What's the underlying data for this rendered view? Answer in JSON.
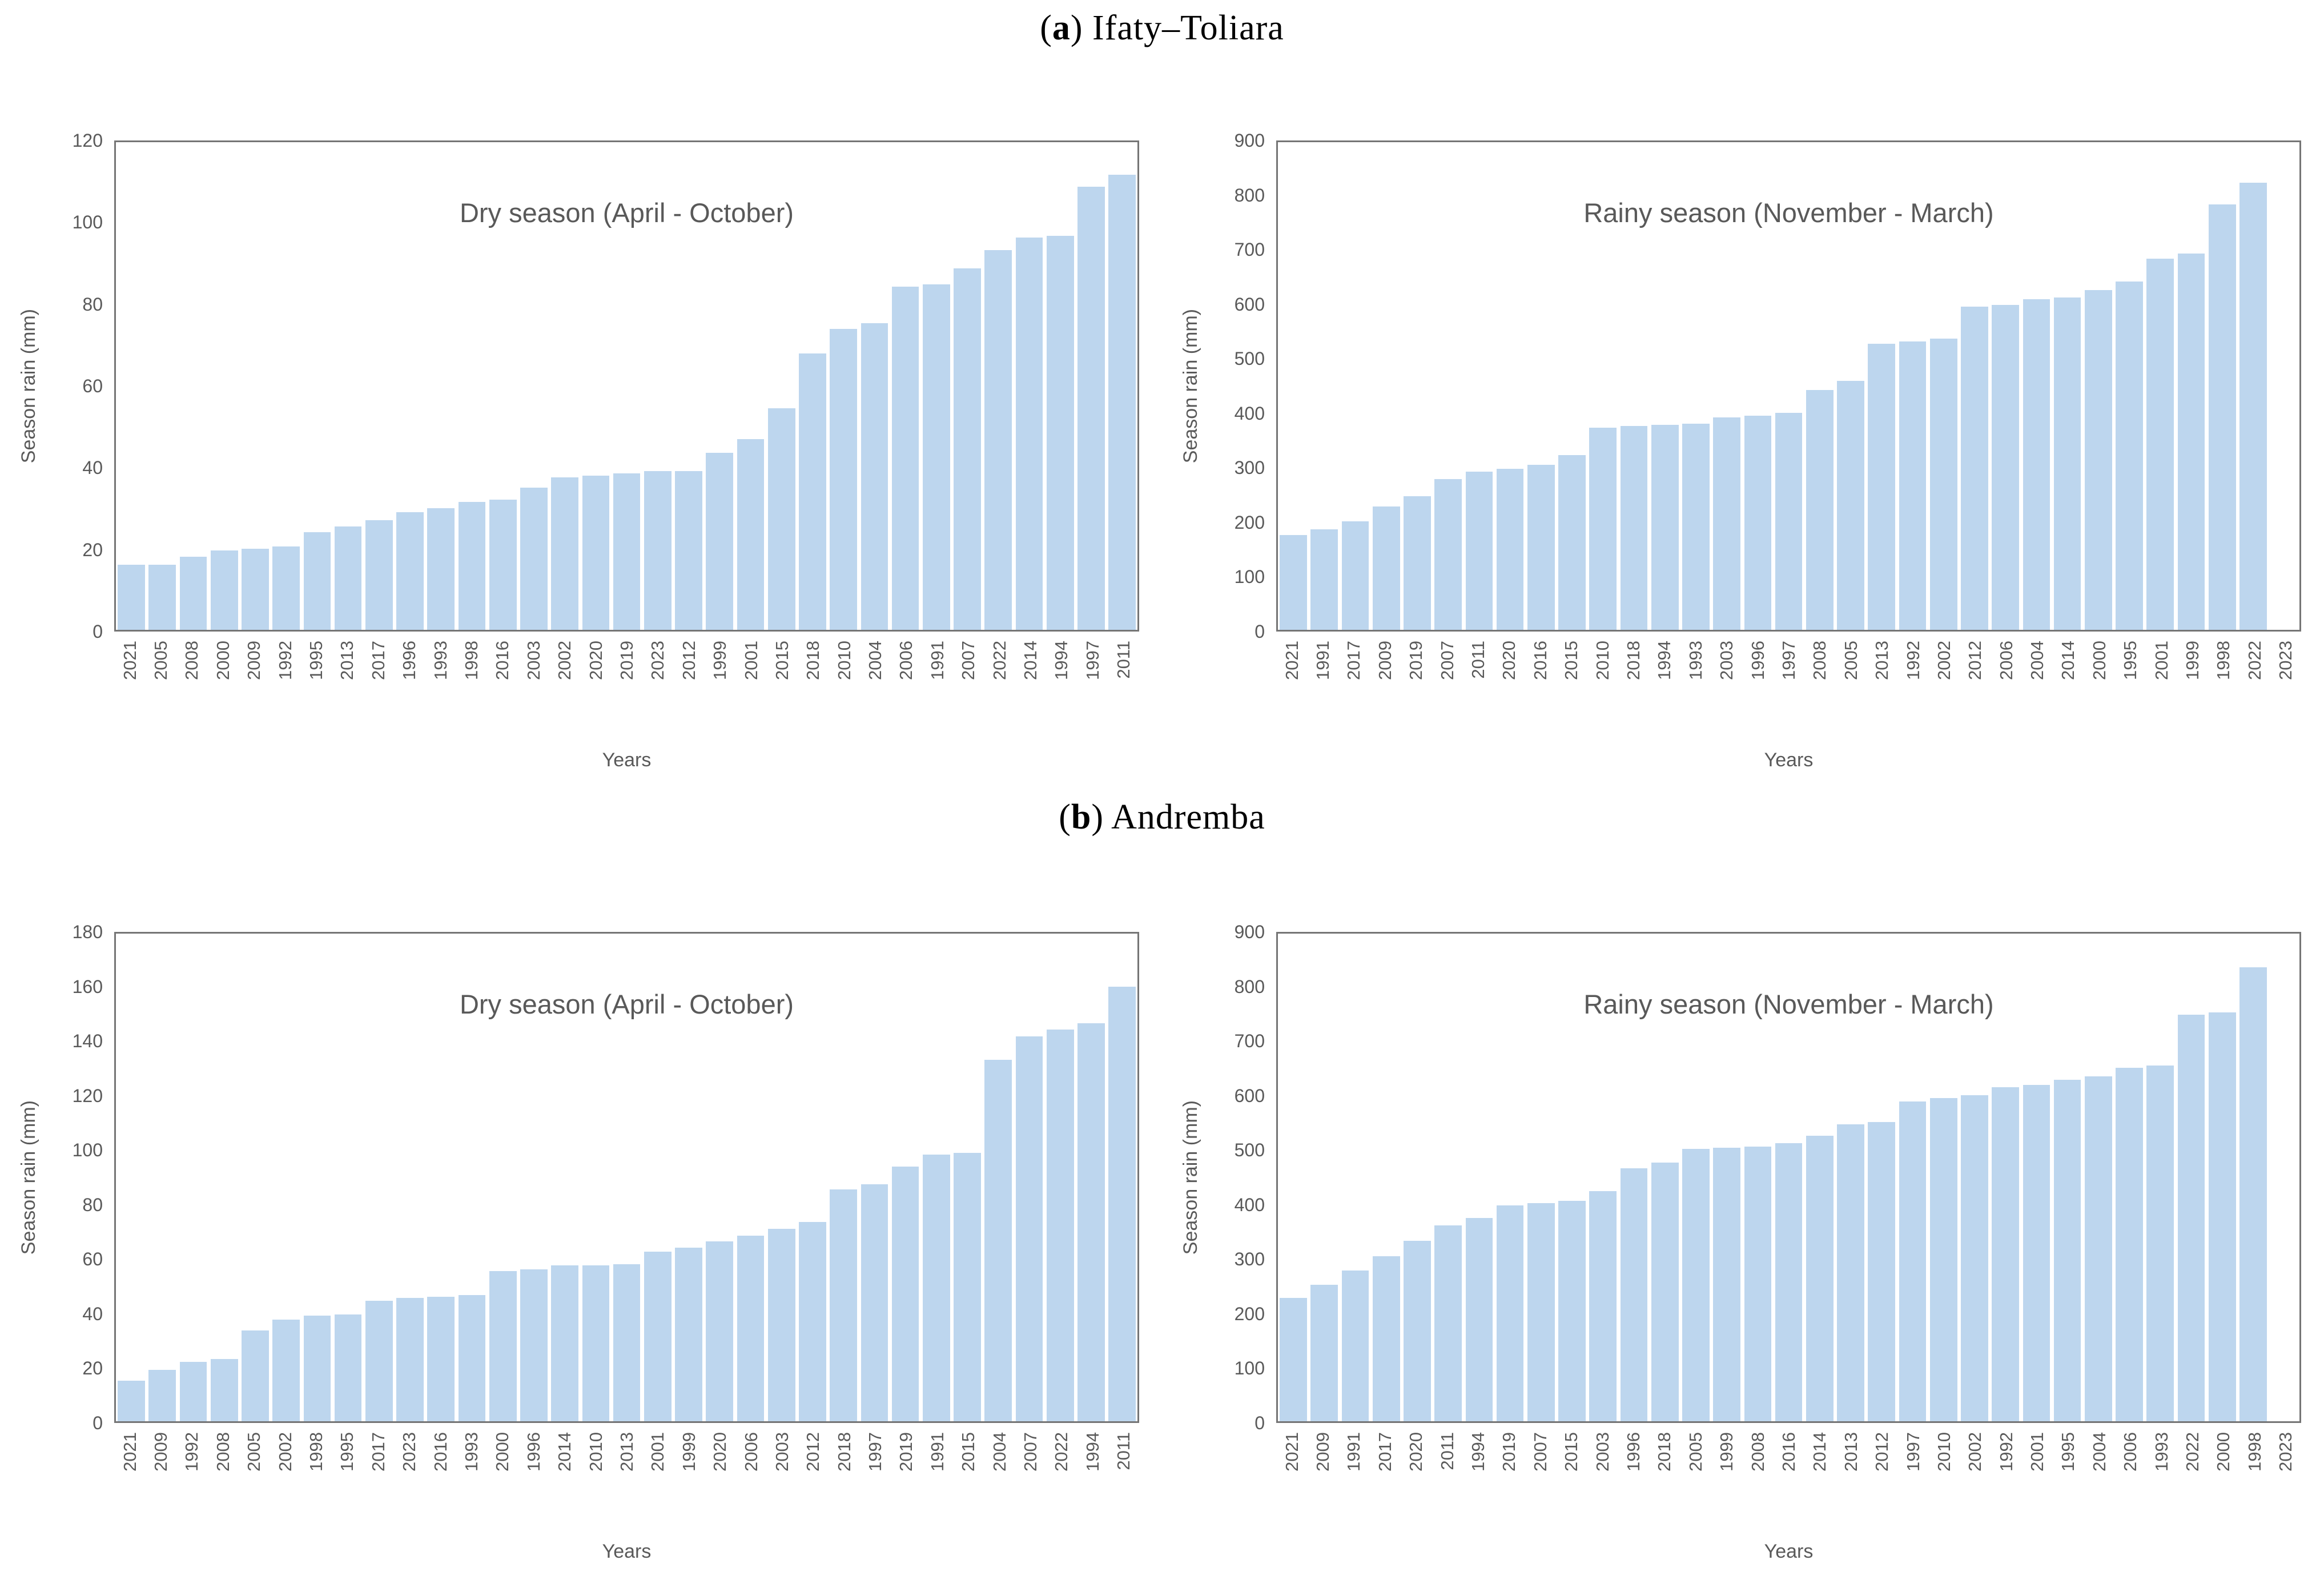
{
  "figure": {
    "ylabel": "Season rain (mm)",
    "xlabel": "Years",
    "bar_color": "#BDD6EE",
    "text_color": "#595959"
  },
  "sections": [
    {
      "pre": "(",
      "bold": "a",
      "post": ") Ifaty–Toliara"
    },
    {
      "pre": "(",
      "bold": "b",
      "post": ") Andremba"
    }
  ],
  "chart_data": [
    {
      "type": "bar",
      "title": "Dry season (April - October)",
      "ylabel": "Season rain (mm)",
      "xlabel": "Years",
      "ylim": [
        0,
        120
      ],
      "ystep": 20,
      "grid": false,
      "legend": false,
      "bar_color": "#BDD6EE",
      "categories": [
        "2021",
        "2005",
        "2008",
        "2000",
        "2009",
        "1992",
        "1995",
        "2013",
        "2017",
        "1996",
        "1993",
        "1998",
        "2016",
        "2003",
        "2002",
        "2020",
        "2019",
        "2023",
        "2012",
        "1999",
        "2001",
        "2015",
        "2018",
        "2010",
        "2004",
        "2006",
        "1991",
        "2007",
        "2022",
        "2014",
        "1994",
        "1997",
        "2011"
      ],
      "values": [
        16,
        16,
        18,
        19.5,
        20,
        20.5,
        24,
        25.5,
        27,
        29,
        30,
        31.5,
        32,
        35,
        37.5,
        38,
        38.5,
        39,
        39,
        43.5,
        47,
        54.5,
        68,
        74,
        75.5,
        84.5,
        85,
        89,
        93.5,
        96.5,
        97,
        109,
        112
      ]
    },
    {
      "type": "bar",
      "title": "Rainy season (November - March)",
      "ylabel": "Season rain (mm)",
      "xlabel": "Years",
      "ylim": [
        0,
        900
      ],
      "ystep": 100,
      "grid": false,
      "legend": false,
      "bar_color": "#BDD6EE",
      "categories": [
        "2021",
        "1991",
        "2017",
        "2009",
        "2019",
        "2007",
        "2011",
        "2020",
        "2016",
        "2015",
        "2010",
        "2018",
        "1994",
        "1993",
        "2003",
        "1996",
        "1997",
        "2008",
        "2005",
        "2013",
        "1992",
        "2002",
        "2012",
        "2006",
        "2004",
        "2014",
        "2000",
        "1995",
        "2001",
        "1999",
        "1998",
        "2022",
        "2023"
      ],
      "values": [
        175,
        185,
        200,
        228,
        247,
        278,
        292,
        297,
        305,
        322,
        373,
        376,
        378,
        380,
        392,
        395,
        400,
        443,
        460,
        528,
        532,
        537,
        597,
        600,
        610,
        613,
        627,
        643,
        685,
        695,
        785,
        825,
        0
      ]
    },
    {
      "type": "bar",
      "title": "Dry season (April - October)",
      "ylabel": "Season rain (mm)",
      "xlabel": "Years",
      "ylim": [
        0,
        180
      ],
      "ystep": 20,
      "grid": false,
      "legend": false,
      "bar_color": "#BDD6EE",
      "categories": [
        "2021",
        "2009",
        "1992",
        "2008",
        "2005",
        "2002",
        "1998",
        "1995",
        "2017",
        "2023",
        "2016",
        "1993",
        "2000",
        "1996",
        "2014",
        "2010",
        "2013",
        "2001",
        "1999",
        "2020",
        "2006",
        "2003",
        "2012",
        "2018",
        "1997",
        "2019",
        "1991",
        "2015",
        "2004",
        "2007",
        "2022",
        "1994",
        "2011"
      ],
      "values": [
        15,
        19,
        22,
        23,
        33.5,
        37.5,
        39,
        39.5,
        44.5,
        45.5,
        46,
        46.5,
        55.5,
        56,
        57.5,
        57.5,
        58,
        62.5,
        64,
        66.5,
        68.5,
        71,
        73.5,
        85.5,
        87.5,
        94,
        98.5,
        99,
        133.5,
        142,
        144.5,
        147,
        160.5
      ]
    },
    {
      "type": "bar",
      "title": "Rainy season (November - March)",
      "ylabel": "Season rain (mm)",
      "xlabel": "Years",
      "ylim": [
        0,
        900
      ],
      "ystep": 100,
      "grid": false,
      "legend": false,
      "bar_color": "#BDD6EE",
      "categories": [
        "2021",
        "2009",
        "1991",
        "2017",
        "2020",
        "2011",
        "1994",
        "2019",
        "2007",
        "2015",
        "2003",
        "1996",
        "2018",
        "2005",
        "1999",
        "2008",
        "2016",
        "2014",
        "2013",
        "2012",
        "1997",
        "2010",
        "2002",
        "1992",
        "2001",
        "1995",
        "2004",
        "2006",
        "1993",
        "2022",
        "2000",
        "1998",
        "2023"
      ],
      "values": [
        228,
        252,
        278,
        305,
        333,
        362,
        375,
        398,
        403,
        407,
        425,
        467,
        477,
        503,
        505,
        507,
        513,
        527,
        548,
        552,
        590,
        597,
        602,
        617,
        621,
        630,
        637,
        652,
        657,
        750,
        755,
        838,
        0
      ]
    }
  ]
}
